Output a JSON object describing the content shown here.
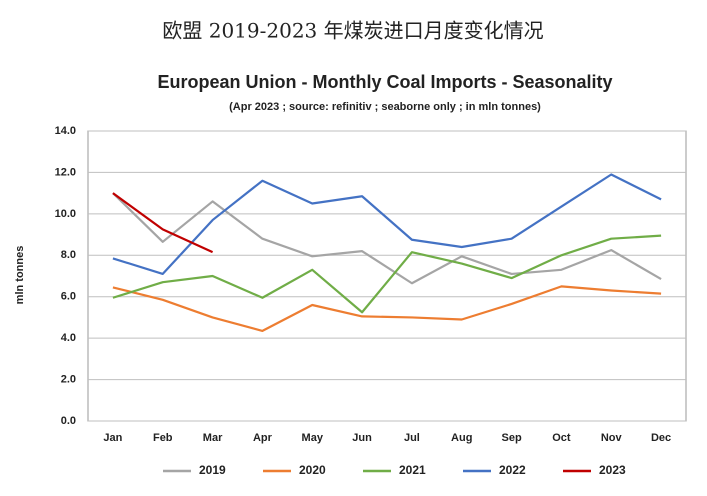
{
  "header": {
    "title": "欧盟 2019-2023 年煤炭进口月度变化情况"
  },
  "chart_data": {
    "type": "line",
    "title": "European Union - Monthly Coal Imports - Seasonality",
    "subtitle": "(Apr 2023 ; source: refinitiv ; seaborne only ; in mln tonnes)",
    "y_label": "mln tonnes",
    "categories": [
      "Jan",
      "Feb",
      "Mar",
      "Apr",
      "May",
      "Jun",
      "Jul",
      "Aug",
      "Sep",
      "Oct",
      "Nov",
      "Dec"
    ],
    "series": [
      {
        "name": "2019",
        "color": "#a5a5a5",
        "values": [
          11.0,
          8.65,
          10.6,
          8.8,
          7.95,
          8.2,
          6.65,
          7.95,
          7.1,
          7.3,
          8.25,
          6.85
        ]
      },
      {
        "name": "2020",
        "color": "#ed7d31",
        "values": [
          6.45,
          5.85,
          5.0,
          4.35,
          5.6,
          5.05,
          5.0,
          4.9,
          5.65,
          6.5,
          6.3,
          6.15
        ]
      },
      {
        "name": "2021",
        "color": "#70ad47",
        "values": [
          5.95,
          6.7,
          7.0,
          5.95,
          7.3,
          5.25,
          8.15,
          7.6,
          6.9,
          8.0,
          8.8,
          8.95
        ]
      },
      {
        "name": "2022",
        "color": "#4472c4",
        "values": [
          7.85,
          7.1,
          9.7,
          11.6,
          10.5,
          10.85,
          8.75,
          8.4,
          8.8,
          10.35,
          11.9,
          10.7
        ]
      },
      {
        "name": "2023",
        "color": "#c00000",
        "values": [
          11.0,
          9.25,
          8.15,
          null,
          null,
          null,
          null,
          null,
          null,
          null,
          null,
          null
        ]
      }
    ],
    "ylim": [
      0,
      14
    ],
    "yticks": [
      {
        "value": 0,
        "label": "0.0"
      },
      {
        "value": 2,
        "label": "2.0"
      },
      {
        "value": 4,
        "label": "4.0"
      },
      {
        "value": 6,
        "label": "6.0"
      },
      {
        "value": 8,
        "label": "8.0"
      },
      {
        "value": 10,
        "label": "10.0"
      },
      {
        "value": 12,
        "label": "12.0"
      },
      {
        "value": 14,
        "label": "14.0"
      }
    ],
    "grid": true,
    "legend": "bottom"
  }
}
